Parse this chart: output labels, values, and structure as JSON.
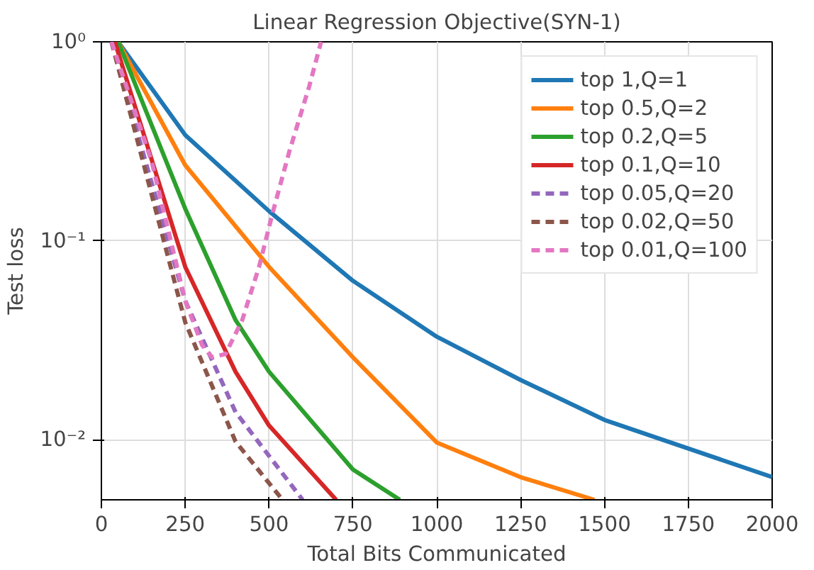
{
  "chart_data": {
    "type": "line",
    "title": "Linear Regression Objective(SYN-1)",
    "xlabel": "Total Bits Communicated",
    "ylabel": "Test loss",
    "log": "y",
    "grid": true,
    "legend": "top right",
    "xlim": [
      0,
      2000
    ],
    "xticks": [
      0,
      250,
      500,
      750,
      1000,
      1250,
      1500,
      1750,
      2000
    ],
    "ylim": [
      0.005,
      1
    ],
    "yticks": [
      {
        "value": 0.01,
        "label": "10⁻²"
      },
      {
        "value": 0.1,
        "label": "10⁻¹"
      },
      {
        "value": 1,
        "label": "10⁰"
      }
    ],
    "series": [
      {
        "name": "top 1,Q=1",
        "color": "#1f77b4",
        "line_style": "solid",
        "x": [
          50,
          250,
          500,
          750,
          1000,
          1250,
          1500,
          2000
        ],
        "values": [
          1,
          0.34,
          0.141,
          0.063,
          0.033,
          0.02,
          0.0126,
          0.0065
        ]
      },
      {
        "name": "top 0.5,Q=2",
        "color": "#ff7f0e",
        "line_style": "solid",
        "x": [
          50,
          250,
          500,
          750,
          1000,
          1250,
          1470
        ],
        "values": [
          1,
          0.24,
          0.074,
          0.026,
          0.0097,
          0.0065,
          0.005
        ]
      },
      {
        "name": "top 0.2,Q=5",
        "color": "#2ca02c",
        "line_style": "solid",
        "x": [
          50,
          250,
          400,
          500,
          750,
          890
        ],
        "values": [
          1,
          0.145,
          0.04,
          0.022,
          0.0071,
          0.005
        ]
      },
      {
        "name": "top 0.1,Q=10",
        "color": "#d62728",
        "line_style": "solid",
        "x": [
          40,
          250,
          400,
          500,
          700
        ],
        "values": [
          1,
          0.074,
          0.022,
          0.0118,
          0.005
        ]
      },
      {
        "name": "top 0.05,Q=20",
        "color": "#9467bd",
        "line_style": "dashed",
        "x": [
          30,
          250,
          400,
          600
        ],
        "values": [
          1,
          0.05,
          0.0138,
          0.005
        ]
      },
      {
        "name": "top 0.02,Q=50",
        "color": "#8c564b",
        "line_style": "dashed",
        "x": [
          30,
          250,
          400,
          540
        ],
        "values": [
          1,
          0.039,
          0.0098,
          0.005
        ]
      },
      {
        "name": "top 0.01,Q=100",
        "color": "#e377c2",
        "line_style": "dashed",
        "x": [
          30,
          150,
          250,
          300,
          330,
          370,
          420,
          470,
          510,
          560,
          620,
          655
        ],
        "values": [
          1,
          0.25,
          0.05,
          0.03,
          0.026,
          0.027,
          0.04,
          0.074,
          0.137,
          0.28,
          0.6,
          1
        ]
      }
    ]
  }
}
